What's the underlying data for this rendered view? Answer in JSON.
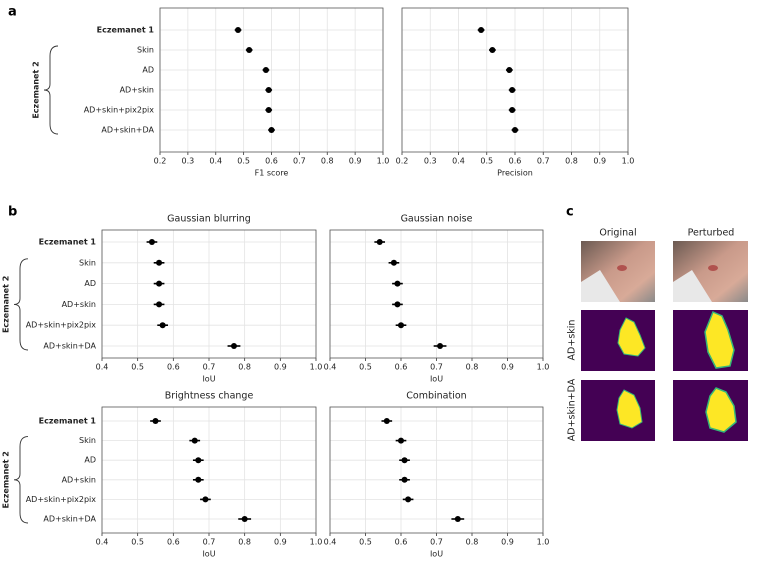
{
  "panel_labels": [
    "a",
    "b",
    "c"
  ],
  "chart_data": [
    {
      "type": "forest",
      "xlabel": "F1 score",
      "group_label": "Eczemanet 2",
      "categories": [
        "Eczemanet 1",
        "Skin",
        "AD",
        "AD+skin",
        "AD+skin+pix2pix",
        "AD+skin+DA"
      ],
      "values": [
        0.48,
        0.52,
        0.58,
        0.59,
        0.59,
        0.6
      ],
      "errors": [
        0.012,
        0.012,
        0.012,
        0.012,
        0.012,
        0.012
      ],
      "xlim": [
        0.2,
        1.0
      ],
      "xticks": [
        0.2,
        0.3,
        0.4,
        0.5,
        0.6,
        0.7,
        0.8,
        0.9,
        {
          "value": 1.0,
          "label": "1.0"
        }
      ],
      "grid": true,
      "color": "#000000"
    },
    {
      "type": "forest",
      "xlabel": "Precision",
      "values": [
        0.48,
        0.52,
        0.58,
        0.59,
        0.59,
        0.6
      ],
      "errors": [
        0.012,
        0.012,
        0.012,
        0.012,
        0.012,
        0.012
      ],
      "xlim": [
        0.2,
        1.0
      ],
      "xticks": [
        0.2,
        0.3,
        0.4,
        0.5,
        0.6,
        0.7,
        0.8,
        0.9,
        {
          "value": 1.0,
          "label": "1.0"
        }
      ],
      "grid": true,
      "color": "#000000"
    },
    {
      "type": "forest",
      "title": "Gaussian blurring",
      "xlabel": "IoU",
      "group_label": "Eczemanet 2",
      "categories": [
        "Eczemanet 1",
        "Skin",
        "AD",
        "AD+skin",
        "AD+skin+pix2pix",
        "AD+skin+DA"
      ],
      "values": [
        0.54,
        0.56,
        0.56,
        0.56,
        0.57,
        0.77
      ],
      "errors": [
        0.015,
        0.015,
        0.015,
        0.015,
        0.015,
        0.018
      ],
      "xlim": [
        0.4,
        1.0
      ],
      "xticks": [
        0.4,
        0.5,
        0.6,
        0.7,
        0.8,
        0.9,
        {
          "value": 1.0,
          "label": "1.0"
        }
      ],
      "grid": true,
      "color": "#000000"
    },
    {
      "type": "forest",
      "title": "Gaussian noise",
      "xlabel": "IoU",
      "values": [
        0.54,
        0.58,
        0.59,
        0.59,
        0.6,
        0.71
      ],
      "errors": [
        0.015,
        0.015,
        0.015,
        0.015,
        0.015,
        0.018
      ],
      "xlim": [
        0.4,
        1.0
      ],
      "xticks": [
        0.4,
        0.5,
        0.6,
        0.7,
        0.8,
        0.9,
        {
          "value": 1.0,
          "label": "1.0"
        }
      ],
      "grid": true,
      "color": "#000000"
    },
    {
      "type": "forest",
      "title": "Brightness change",
      "xlabel": "IoU",
      "group_label": "Eczemanet 2",
      "categories": [
        "Eczemanet 1",
        "Skin",
        "AD",
        "AD+skin",
        "AD+skin+pix2pix",
        "AD+skin+DA"
      ],
      "values": [
        0.55,
        0.66,
        0.67,
        0.67,
        0.69,
        0.8
      ],
      "errors": [
        0.015,
        0.015,
        0.015,
        0.015,
        0.015,
        0.018
      ],
      "xlim": [
        0.4,
        1.0
      ],
      "xticks": [
        0.4,
        0.5,
        0.6,
        0.7,
        0.8,
        0.9,
        {
          "value": 1.0,
          "label": "1.0"
        }
      ],
      "grid": true,
      "color": "#000000"
    },
    {
      "type": "forest",
      "title": "Combination",
      "xlabel": "IoU",
      "values": [
        0.56,
        0.6,
        0.61,
        0.61,
        0.62,
        0.76
      ],
      "errors": [
        0.015,
        0.015,
        0.015,
        0.015,
        0.015,
        0.018
      ],
      "xlim": [
        0.4,
        1.0
      ],
      "xticks": [
        0.4,
        0.5,
        0.6,
        0.7,
        0.8,
        0.9,
        {
          "value": 1.0,
          "label": "1.0"
        }
      ],
      "grid": true,
      "color": "#000000"
    }
  ],
  "image_panel": {
    "columns": [
      "Original",
      "Perturbed"
    ],
    "rows": [
      "AD+skin",
      "AD+skin+DA"
    ]
  }
}
